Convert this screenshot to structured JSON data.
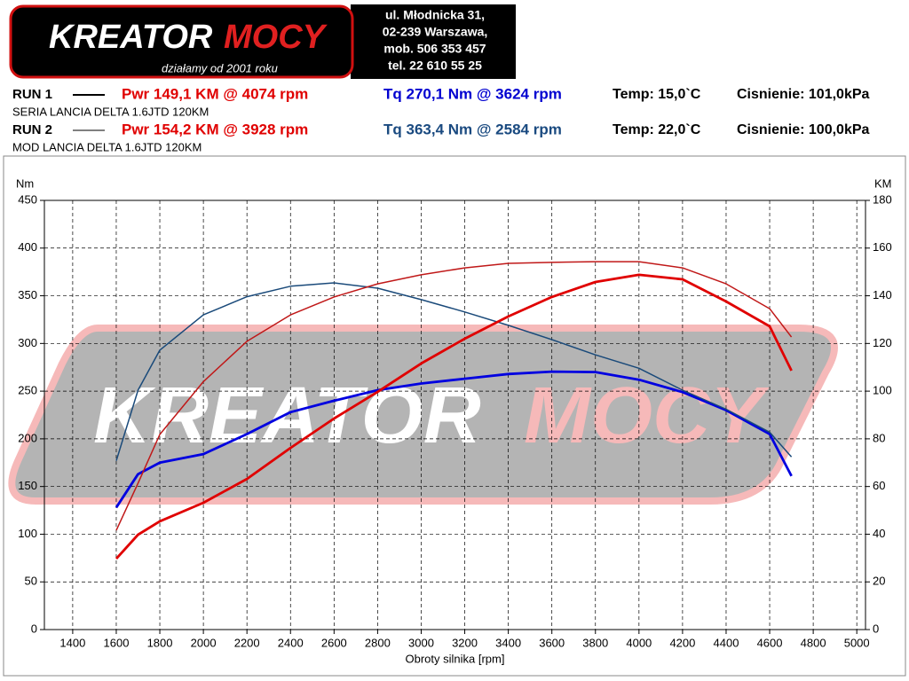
{
  "header": {
    "logo_text": [
      "KREATOR",
      "MOCY"
    ],
    "tagline": "działamy od 2001 roku",
    "address": [
      "ul. Młodnicka 31,",
      "02-239  Warszawa,",
      "mob.  506 353 457",
      "tel.  22 610 55 25"
    ]
  },
  "runs": [
    {
      "label": "RUN 1",
      "desc": "SERIA LANCIA DELTA 1.6JTD 120KM",
      "pwr": "Pwr  149,1 KM @ 4074 rpm",
      "tq": "Tq 270,1 Nm @ 3624 rpm",
      "temp": "Temp: 15,0`C",
      "pressure": "Cisnienie: 101,0kPa",
      "tq_color": "#0000d0"
    },
    {
      "label": "RUN 2",
      "desc": "MOD LANCIA DELTA 1.6JTD 120KM",
      "pwr": "Pwr  154,2 KM @ 3928 rpm",
      "tq": "Tq 363,4 Nm @ 2584 rpm",
      "temp": "Temp: 22,0`C",
      "pressure": "Cisnienie: 100,0kPa",
      "tq_color": "#1a4a80"
    }
  ],
  "chart_data": {
    "type": "line",
    "ylabel": "Nm",
    "y2label": "KM",
    "xlabel": "Obroty silnika [rpm]",
    "xlim": [
      1270,
      5040
    ],
    "xticks": [
      1400,
      1600,
      1800,
      2000,
      2200,
      2400,
      2600,
      2800,
      3000,
      3200,
      3400,
      3600,
      3800,
      4000,
      4200,
      4400,
      4600,
      4800,
      5000
    ],
    "ylim": [
      0,
      450
    ],
    "yticks": [
      0,
      50,
      100,
      150,
      200,
      250,
      300,
      350,
      400,
      450
    ],
    "y2lim": [
      0,
      180
    ],
    "y2ticks": [
      0,
      20,
      40,
      60,
      80,
      100,
      120,
      140,
      160,
      180
    ],
    "grid": true,
    "x": [
      1600,
      1700,
      1800,
      2000,
      2200,
      2400,
      2600,
      2800,
      3000,
      3200,
      3400,
      3600,
      3800,
      4000,
      4200,
      4400,
      4600,
      4700
    ],
    "series": [
      {
        "color": "#0000e0",
        "values": [
          128,
          163,
          175,
          184,
          205,
          228,
          240,
          251,
          258,
          263,
          268,
          270.5,
          270,
          262,
          249,
          230,
          205,
          161
        ]
      },
      {
        "color": "#1a4a7a",
        "values": [
          177,
          251,
          293,
          330,
          349,
          360,
          363.5,
          358,
          346,
          333,
          319,
          304,
          288,
          274,
          251,
          231,
          207,
          181
        ]
      },
      {
        "color": "#e00000",
        "axis": "y2",
        "values": [
          29.7,
          39.8,
          45.4,
          53.2,
          63.2,
          76.2,
          88.5,
          99.7,
          111.6,
          122,
          131.3,
          139.5,
          145.8,
          148.8,
          146.9,
          137.6,
          127.2,
          108.6
        ]
      },
      {
        "color": "#c01818",
        "axis": "y2",
        "values": [
          41.6,
          61.4,
          81.8,
          104,
          120.9,
          132,
          139.5,
          145,
          148.8,
          151.7,
          153.6,
          154,
          154.3,
          154.3,
          151.7,
          145,
          134.6,
          122.7
        ]
      }
    ]
  }
}
